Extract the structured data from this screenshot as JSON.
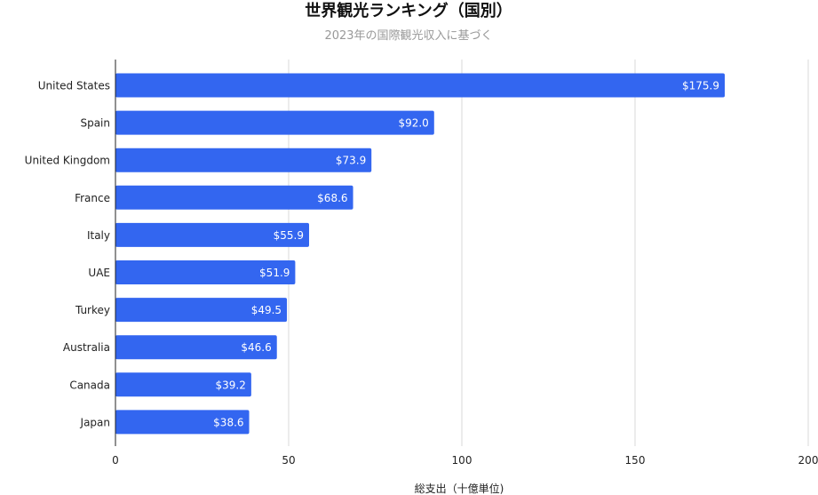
{
  "chart_data": {
    "type": "bar",
    "orientation": "horizontal",
    "title": "世界観光ランキング（国別）",
    "subtitle": "2023年の国際観光収入に基づく",
    "xlabel": "総支出（十億単位)",
    "ylabel": "",
    "categories": [
      "United States",
      "Spain",
      "United Kingdom",
      "France",
      "Italy",
      "UAE",
      "Turkey",
      "Australia",
      "Canada",
      "Japan"
    ],
    "values": [
      175.9,
      92.0,
      73.9,
      68.6,
      55.9,
      51.9,
      49.5,
      46.6,
      39.2,
      38.6
    ],
    "data_labels": [
      "$175.9",
      "$92.0",
      "$73.9",
      "$68.6",
      "$55.9",
      "$51.9",
      "$49.5",
      "$46.6",
      "$39.2",
      "$38.6"
    ],
    "xlim": [
      0,
      200
    ],
    "x_ticks": [
      "0",
      "50",
      "100",
      "150",
      "200"
    ],
    "grid": "vertical",
    "legend": "none",
    "colors": {
      "bar": "#3366f0",
      "grid": "#d9d9d9",
      "axis": "#222222",
      "title": "#111111",
      "subtitle": "#999999",
      "tick_text": "#222222",
      "label_text": "#ffffff"
    }
  }
}
